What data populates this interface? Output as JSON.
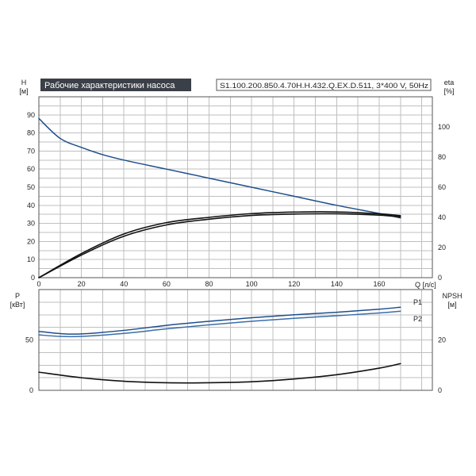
{
  "chart_data": [
    {
      "type": "line",
      "title": "Рабочие характеристики насоса",
      "subtitle": "S1.100.200.850.4.70H.H.432.Q.EX.D.511, 3*400 V, 50Hz",
      "xlabel": "Q [л/с]",
      "ylabel_left": "H",
      "ylabel_left_unit": "[м]",
      "ylabel_right": "eta",
      "ylabel_right_unit": "[%]",
      "xlim": [
        0,
        185
      ],
      "ylim_left": [
        0,
        100
      ],
      "ylim_right": [
        0,
        120
      ],
      "xticks": [
        "0",
        "20",
        "40",
        "60",
        "80",
        "100",
        "120",
        "140",
        "160"
      ],
      "yticks_left": [
        "0",
        "10",
        "20",
        "30",
        "40",
        "50",
        "60",
        "70",
        "80",
        "90"
      ],
      "yticks_right": [
        "0",
        "20",
        "40",
        "60",
        "80",
        "100"
      ],
      "grid": true,
      "series": [
        {
          "axis": "left",
          "color": "#1f4e8c",
          "x": [
            0,
            10,
            20,
            30,
            40,
            60,
            80,
            100,
            120,
            140,
            160,
            170
          ],
          "y": [
            88,
            77,
            72,
            68,
            65,
            60,
            55,
            50,
            45,
            40,
            35.5,
            33
          ]
        },
        {
          "axis": "right",
          "color": "#111111",
          "x": [
            0,
            20,
            40,
            60,
            80,
            100,
            120,
            140,
            160,
            170
          ],
          "y": [
            0,
            16,
            29,
            36.5,
            40,
            42.5,
            43.5,
            43.6,
            42.4,
            41.1
          ]
        },
        {
          "axis": "right",
          "color": "#111111",
          "x": [
            0,
            20,
            40,
            60,
            80,
            100,
            120,
            140,
            160,
            170
          ],
          "y": [
            0,
            15,
            27.5,
            35,
            38.8,
            41.3,
            42.2,
            42.4,
            41.5,
            40.3
          ]
        }
      ]
    },
    {
      "type": "line",
      "xlabel": "",
      "ylabel_left": "P",
      "ylabel_left_unit": "[кВт]",
      "ylabel_right": "NPSH",
      "ylabel_right_unit": "[м]",
      "xlim": [
        0,
        185
      ],
      "ylim_left": [
        0,
        100
      ],
      "ylim_right": [
        0,
        40
      ],
      "yticks_left": [
        "0",
        "50"
      ],
      "yticks_right": [
        "0",
        "20"
      ],
      "grid": true,
      "series": [
        {
          "name": "P1",
          "axis": "left",
          "color": "#1f4e8c",
          "x": [
            0,
            10,
            20,
            40,
            60,
            80,
            100,
            120,
            140,
            160,
            170
          ],
          "y": [
            58.5,
            56.3,
            56,
            59.5,
            64.5,
            68.5,
            72,
            75,
            77.5,
            80.5,
            82.5
          ]
        },
        {
          "name": "P2",
          "axis": "left",
          "color": "#3a6ea8",
          "x": [
            0,
            10,
            20,
            40,
            60,
            80,
            100,
            120,
            140,
            160,
            170
          ],
          "y": [
            55,
            53.5,
            53.5,
            56.5,
            61,
            65,
            68.5,
            71.5,
            74,
            76.8,
            78.5
          ]
        },
        {
          "axis": "right",
          "color": "#111111",
          "x": [
            0,
            20,
            40,
            60,
            80,
            100,
            120,
            140,
            160,
            170
          ],
          "y": [
            7.2,
            5,
            3.6,
            3,
            3,
            3.4,
            4.5,
            6.2,
            8.8,
            10.6
          ]
        }
      ]
    }
  ]
}
